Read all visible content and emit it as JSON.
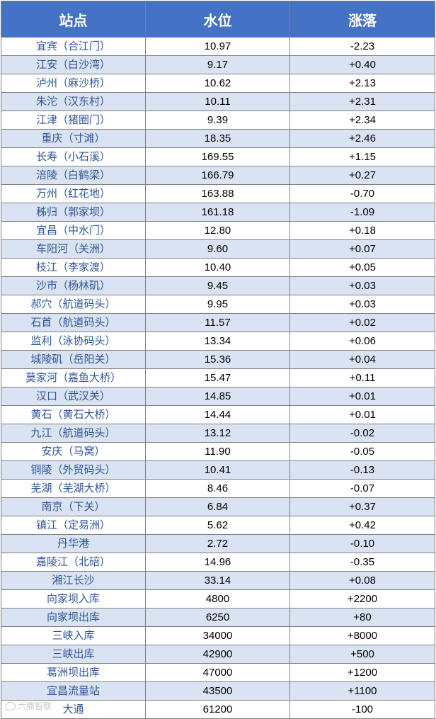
{
  "headers": [
    "站点",
    "水位",
    "涨落"
  ],
  "rows": [
    {
      "station": "宜宾（合江门）",
      "level": "10.97",
      "change": "-2.23"
    },
    {
      "station": "江安（白沙湾）",
      "level": "9.17",
      "change": "+0.40"
    },
    {
      "station": "泸州（麻沙桥）",
      "level": "10.62",
      "change": "+2.13"
    },
    {
      "station": "朱沱（汉东村）",
      "level": "10.11",
      "change": "+2.31"
    },
    {
      "station": "江津（猪圈门）",
      "level": "9.39",
      "change": "+2.34"
    },
    {
      "station": "重庆（寸滩）",
      "level": "18.35",
      "change": "+2.46"
    },
    {
      "station": "长寿（小石溪）",
      "level": "169.55",
      "change": "+1.15"
    },
    {
      "station": "涪陵（白鹤梁）",
      "level": "166.79",
      "change": "+0.27"
    },
    {
      "station": "万州（红花地）",
      "level": "163.88",
      "change": "-0.70"
    },
    {
      "station": "秭归（郭家坝）",
      "level": "161.18",
      "change": "-1.09"
    },
    {
      "station": "宜昌（中水门）",
      "level": "12.80",
      "change": "+0.18"
    },
    {
      "station": "车阳河（关洲）",
      "level": "9.60",
      "change": "+0.07"
    },
    {
      "station": "枝江（李家渡）",
      "level": "10.40",
      "change": "+0.05"
    },
    {
      "station": "沙市（杨林矶）",
      "level": "9.45",
      "change": "+0.03"
    },
    {
      "station": "郝穴（航道码头）",
      "level": "9.95",
      "change": "+0.03"
    },
    {
      "station": "石首（航道码头）",
      "level": "11.57",
      "change": "+0.02"
    },
    {
      "station": "监利（泳协码头）",
      "level": "13.34",
      "change": "+0.06"
    },
    {
      "station": "城陵矶（岳阳关）",
      "level": "15.36",
      "change": "+0.04"
    },
    {
      "station": "莫家河（嘉鱼大桥）",
      "level": "15.47",
      "change": "+0.11"
    },
    {
      "station": "汉口（武汉关）",
      "level": "14.85",
      "change": "+0.01"
    },
    {
      "station": "黄石（黄石大桥）",
      "level": "14.44",
      "change": "+0.01"
    },
    {
      "station": "九江（航道码头）",
      "level": "13.12",
      "change": "-0.02"
    },
    {
      "station": "安庆（马窝）",
      "level": "11.90",
      "change": "-0.05"
    },
    {
      "station": "铜陵（外贸码头）",
      "level": "10.41",
      "change": "-0.13"
    },
    {
      "station": "芜湖（芜湖大桥）",
      "level": "8.46",
      "change": "-0.07"
    },
    {
      "station": "南京（下关）",
      "level": "6.84",
      "change": "+0.37"
    },
    {
      "station": "镇江（定易洲）",
      "level": "5.62",
      "change": "+0.42"
    },
    {
      "station": "丹华港",
      "level": "2.72",
      "change": "-0.10"
    },
    {
      "station": "嘉陵江（北碚）",
      "level": "14.96",
      "change": "-0.35"
    },
    {
      "station": "湘江长沙",
      "level": "33.14",
      "change": "+0.08"
    },
    {
      "station": "向家坝入库",
      "level": "4800",
      "change": "+2200"
    },
    {
      "station": "向家坝出库",
      "level": "6250",
      "change": "+80"
    },
    {
      "station": "三峡入库",
      "level": "34000",
      "change": "+8000"
    },
    {
      "station": "三峡出库",
      "level": "42900",
      "change": "+500"
    },
    {
      "station": "葛洲坝出库",
      "level": "47000",
      "change": "+1200"
    },
    {
      "station": "宜昌流量站",
      "level": "43500",
      "change": "+1100"
    },
    {
      "station": "大通",
      "level": "61200",
      "change": "-100"
    }
  ],
  "watermark": "六鼎智联",
  "colors": {
    "header_bg": "#4472c4",
    "header_text": "#ffffff",
    "row_alt_bg": "#dae3f3",
    "station_text": "#2f5597"
  }
}
